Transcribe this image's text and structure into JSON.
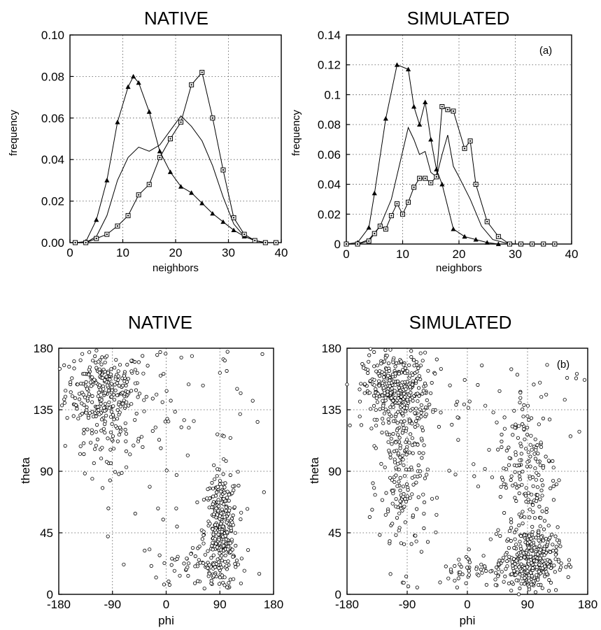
{
  "chart_data": [
    {
      "type": "line",
      "title": "NATIVE",
      "xlabel": "neighbors",
      "ylabel": "frequency",
      "xlim": [
        0,
        40
      ],
      "ylim": [
        0,
        0.1
      ],
      "xticks": [
        0,
        10,
        20,
        30,
        40
      ],
      "xtick_labels": [
        "0",
        "10",
        "20",
        "30",
        "40"
      ],
      "yticks": [
        0,
        0.02,
        0.04,
        0.06,
        0.08,
        0.1
      ],
      "ytick_labels": [
        "0.00",
        "0.02",
        "0.04",
        "0.06",
        "0.08",
        "0.10"
      ],
      "grid": true,
      "series": [
        {
          "marker": "triangle",
          "x": [
            1,
            3,
            5,
            7,
            9,
            11,
            12,
            13,
            15,
            17,
            19,
            21,
            23,
            25,
            27,
            29,
            31,
            33,
            35,
            37,
            39
          ],
          "y": [
            0,
            0.0005,
            0.011,
            0.03,
            0.058,
            0.075,
            0.08,
            0.077,
            0.063,
            0.044,
            0.034,
            0.027,
            0.024,
            0.019,
            0.014,
            0.01,
            0.006,
            0.003,
            0.001,
            0,
            0
          ]
        },
        {
          "marker": "none",
          "x": [
            3,
            5,
            7,
            9,
            11,
            13,
            15,
            17,
            19,
            21,
            23,
            25,
            27,
            29,
            31,
            33,
            35,
            37,
            39
          ],
          "y": [
            0,
            0.003,
            0.013,
            0.03,
            0.041,
            0.046,
            0.044,
            0.047,
            0.054,
            0.061,
            0.056,
            0.049,
            0.037,
            0.022,
            0.009,
            0.003,
            0.001,
            0,
            0
          ]
        },
        {
          "marker": "square",
          "x": [
            1,
            3,
            5,
            7,
            9,
            11,
            13,
            15,
            17,
            19,
            21,
            23,
            25,
            27,
            29,
            31,
            33,
            35,
            37,
            39
          ],
          "y": [
            0,
            0,
            0.002,
            0.004,
            0.008,
            0.013,
            0.023,
            0.028,
            0.041,
            0.05,
            0.058,
            0.076,
            0.082,
            0.06,
            0.035,
            0.012,
            0.004,
            0.001,
            0,
            0
          ]
        }
      ]
    },
    {
      "type": "line",
      "title": "SIMULATED",
      "annotation": "(a)",
      "xlabel": "neighbors",
      "ylabel": "frequency",
      "xlim": [
        0,
        40
      ],
      "ylim": [
        0,
        0.14
      ],
      "xticks": [
        0,
        10,
        20,
        30,
        40
      ],
      "xtick_labels": [
        "0",
        "10",
        "20",
        "30",
        "40"
      ],
      "yticks": [
        0,
        0.02,
        0.04,
        0.06,
        0.08,
        0.1,
        0.12,
        0.14
      ],
      "ytick_labels": [
        "0",
        "0.02",
        "0.04",
        "0.06",
        "0.08",
        "0.1",
        "0.12",
        "0.14"
      ],
      "grid": true,
      "series": [
        {
          "marker": "triangle",
          "x": [
            0,
            2,
            4,
            5,
            7,
            9,
            11,
            12,
            13,
            14,
            15,
            16,
            17,
            19,
            21,
            23,
            25,
            27,
            29,
            31,
            33,
            35,
            37
          ],
          "y": [
            0,
            0.001,
            0.011,
            0.034,
            0.084,
            0.12,
            0.117,
            0.092,
            0.08,
            0.095,
            0.07,
            0.05,
            0.04,
            0.01,
            0.005,
            0.003,
            0.001,
            0,
            0,
            0,
            0,
            0,
            0
          ]
        },
        {
          "marker": "none",
          "x": [
            2,
            4,
            6,
            8,
            10,
            11,
            12,
            13,
            14,
            15,
            16,
            17,
            18,
            19,
            20,
            22,
            24,
            26,
            28,
            30
          ],
          "y": [
            0,
            0.003,
            0.012,
            0.03,
            0.062,
            0.078,
            0.07,
            0.06,
            0.062,
            0.048,
            0.045,
            0.06,
            0.073,
            0.052,
            0.045,
            0.03,
            0.012,
            0.003,
            0.001,
            0
          ]
        },
        {
          "marker": "square",
          "x": [
            0,
            2,
            4,
            5,
            6,
            7,
            8,
            9,
            10,
            11,
            12,
            13,
            14,
            15,
            16,
            17,
            18,
            19,
            21,
            22,
            23,
            25,
            27,
            29,
            31,
            33,
            35,
            37
          ],
          "y": [
            0,
            0,
            0.002,
            0.007,
            0.012,
            0.01,
            0.019,
            0.027,
            0.02,
            0.028,
            0.038,
            0.044,
            0.044,
            0.041,
            0.045,
            0.092,
            0.09,
            0.089,
            0.064,
            0.069,
            0.04,
            0.015,
            0.005,
            0,
            0,
            0,
            0,
            0
          ]
        }
      ]
    },
    {
      "type": "scatter",
      "title": "NATIVE",
      "xlabel": "phi",
      "ylabel": "theta",
      "xlim": [
        -180,
        180
      ],
      "ylim": [
        0,
        180
      ],
      "xticks": [
        -180,
        -90,
        0,
        90,
        180
      ],
      "xtick_labels": [
        "-180",
        "-90",
        "0",
        "90",
        "180"
      ],
      "yticks": [
        0,
        45,
        90,
        135,
        180
      ],
      "ytick_labels": [
        "0",
        "45",
        "90",
        "135",
        "180"
      ],
      "grid": true,
      "marker": "open-circle",
      "clusters": [
        {
          "phi_mean": -105,
          "phi_sd": 32,
          "theta_mean": 150,
          "theta_sd": 14,
          "n": 260
        },
        {
          "phi_mean": -95,
          "phi_sd": 30,
          "theta_mean": 112,
          "theta_sd": 13,
          "n": 55
        },
        {
          "phi_mean": 92,
          "phi_sd": 14,
          "theta_mean": 45,
          "theta_sd": 22,
          "n": 300
        },
        {
          "phi_mean": 60,
          "phi_sd": 45,
          "theta_mean": 20,
          "theta_sd": 8,
          "n": 60
        },
        {
          "phi_mean": 0,
          "phi_sd": 100,
          "theta_mean": 150,
          "theta_sd": 25,
          "n": 50
        },
        {
          "phi_mean": -20,
          "phi_sd": 90,
          "theta_mean": 60,
          "theta_sd": 40,
          "n": 30
        }
      ]
    },
    {
      "type": "scatter",
      "title": "SIMULATED",
      "annotation": "(b)",
      "xlabel": "phi",
      "ylabel": "theta",
      "xlim": [
        -180,
        180
      ],
      "ylim": [
        0,
        180
      ],
      "xticks": [
        -180,
        -90,
        0,
        90,
        180
      ],
      "xtick_labels": [
        "-180",
        "-90",
        "0",
        "90",
        "180"
      ],
      "yticks": [
        0,
        45,
        90,
        135,
        180
      ],
      "ytick_labels": [
        "0",
        "45",
        "90",
        "135",
        "180"
      ],
      "grid": true,
      "marker": "open-circle",
      "clusters": [
        {
          "phi_mean": -105,
          "phi_sd": 25,
          "theta_mean": 148,
          "theta_sd": 14,
          "n": 360
        },
        {
          "phi_mean": -95,
          "phi_sd": 18,
          "theta_mean": 80,
          "theta_sd": 30,
          "n": 170
        },
        {
          "phi_mean": 95,
          "phi_sd": 20,
          "theta_mean": 25,
          "theta_sd": 12,
          "n": 330
        },
        {
          "phi_mean": 90,
          "phi_sd": 22,
          "theta_mean": 90,
          "theta_sd": 30,
          "n": 170
        },
        {
          "phi_mean": 20,
          "phi_sd": 35,
          "theta_mean": 18,
          "theta_sd": 6,
          "n": 60
        },
        {
          "phi_mean": 20,
          "phi_sd": 110,
          "theta_mean": 140,
          "theta_sd": 35,
          "n": 60
        }
      ]
    }
  ]
}
